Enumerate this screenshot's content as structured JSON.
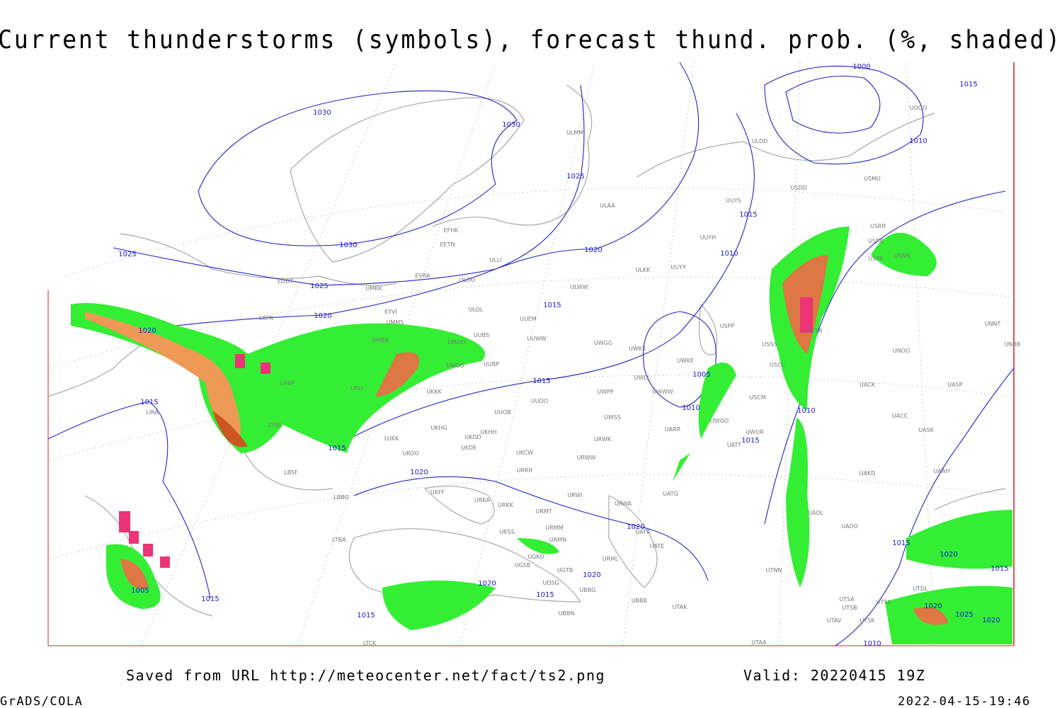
{
  "header": {
    "title": "Current thunderstorms (symbols), forecast thund. prob. (%, shaded)"
  },
  "isobar_labels": [
    "1030",
    "1030",
    "1030",
    "1025",
    "1025",
    "1025",
    "1020",
    "1020",
    "1020",
    "1015",
    "1015",
    "1015",
    "1015",
    "1015",
    "1015",
    "1010",
    "1010",
    "1010",
    "1005",
    "1005",
    "1000",
    "1015",
    "1010",
    "1020",
    "1020",
    "1020",
    "1020",
    "1015",
    "1015",
    "1015",
    "1015",
    "1020",
    "1015",
    "1020",
    "1025",
    "1020",
    "1010"
  ],
  "stations": [
    "ULMM",
    "ULDD",
    "USDD",
    "USMU",
    "UOOO",
    "UUYS",
    "ULAA",
    "EFHK",
    "EETN",
    "ULLI",
    "EVRA",
    "ULOO",
    "EDDT",
    "UMKK",
    "ULWW",
    "ULKK",
    "UUYY",
    "UUYH",
    "LKPR",
    "EYVI",
    "ULOL",
    "UUEM",
    "UMMS",
    "UMBB",
    "UUBS",
    "UUWW",
    "UMOO",
    "UUBP",
    "UMGG",
    "UWGG",
    "UWKS",
    "UWKE",
    "UWLL",
    "UWWW",
    "UWPP",
    "USPP",
    "USSS",
    "USTR",
    "USCC",
    "UNOO",
    "USCM",
    "UWOO",
    "UWSS",
    "UKKK",
    "UKLI",
    "LHBP",
    "UUOB",
    "UUOO",
    "UKHH",
    "UKDD",
    "UKDE",
    "UKHG",
    "LUKK",
    "UKOO",
    "UKCW",
    "URWW",
    "URWK",
    "UARR",
    "UWOR",
    "UATT",
    "UACK",
    "UASP",
    "UACC",
    "UASK",
    "UAKD",
    "UAAH",
    "UNNT",
    "UNBB",
    "UATG",
    "URRR",
    "URWI",
    "URWA",
    "UKFF",
    "URKA",
    "URKK",
    "URMT",
    "URMM",
    "URSS",
    "URMN",
    "UATR",
    "UATE",
    "URML",
    "UAOL",
    "UAOO",
    "UGKO",
    "UGSB",
    "UGTB",
    "UBBG",
    "UDSG",
    "UBBN",
    "UBBB",
    "UTAK",
    "UTNN",
    "UTDL",
    "UTSA",
    "UTSB",
    "UTSS",
    "UTAV",
    "UTSK",
    "UTAA",
    "LTCK",
    "LTBA",
    "LBBG",
    "LBSF",
    "LYBE",
    "LIRA",
    "USRR",
    "USRK",
    "USPR",
    "USNN"
  ],
  "footer": {
    "source": "Saved from URL http://meteocenter.net/fact/ts2.png",
    "valid": "Valid: 20220415 19Z",
    "software": "GrADS/COLA",
    "timestamp": "2022-04-15-19:46"
  }
}
